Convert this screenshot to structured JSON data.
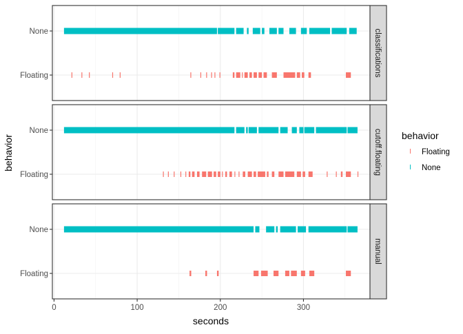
{
  "chart_data": {
    "type": "faceted-strip",
    "xlabel": "seconds",
    "ylabel": "behavior",
    "xlim": [
      -2,
      380
    ],
    "x_ticks": [
      0,
      100,
      200,
      300
    ],
    "y_categories": [
      "Floating",
      "None"
    ],
    "legend": {
      "title": "behavior",
      "placement": "right",
      "entries": [
        {
          "label": "Floating",
          "color": "#F8766D"
        },
        {
          "label": "None",
          "color": "#00BFC4"
        }
      ]
    },
    "colors": {
      "Floating": "#F8766D",
      "None": "#00BFC4"
    },
    "facets": [
      {
        "label": "classifications",
        "None": [
          [
            12,
            196
          ],
          [
            197,
            217
          ],
          [
            219,
            228
          ],
          [
            232,
            234
          ],
          [
            239,
            248
          ],
          [
            250,
            253
          ],
          [
            259,
            268
          ],
          [
            270,
            276
          ],
          [
            283,
            291
          ],
          [
            297,
            304
          ],
          [
            307,
            332
          ],
          [
            334,
            352
          ],
          [
            355,
            364
          ]
        ],
        "Floating": [
          [
            21,
            22
          ],
          [
            33,
            34
          ],
          [
            42,
            43
          ],
          [
            70,
            71
          ],
          [
            79,
            80
          ],
          [
            164,
            165
          ],
          [
            176,
            177
          ],
          [
            183,
            184
          ],
          [
            189,
            190
          ],
          [
            193,
            194
          ],
          [
            199,
            200
          ],
          [
            215,
            217
          ],
          [
            219,
            224
          ],
          [
            226,
            227
          ],
          [
            229,
            233
          ],
          [
            235,
            238
          ],
          [
            240,
            244
          ],
          [
            246,
            250
          ],
          [
            252,
            256
          ],
          [
            262,
            268
          ],
          [
            276,
            290
          ],
          [
            292,
            296
          ],
          [
            298,
            301
          ],
          [
            306,
            309
          ],
          [
            351,
            357
          ]
        ]
      },
      {
        "label": "cutoff.floating",
        "None": [
          [
            12,
            217
          ],
          [
            219,
            229
          ],
          [
            231,
            233
          ],
          [
            234,
            244
          ],
          [
            246,
            270
          ],
          [
            272,
            281
          ],
          [
            286,
            292
          ],
          [
            295,
            300
          ],
          [
            301,
            313
          ],
          [
            315,
            352
          ],
          [
            353,
            365
          ]
        ],
        "Floating": [
          [
            131,
            132
          ],
          [
            137,
            138
          ],
          [
            144,
            145
          ],
          [
            152,
            153
          ],
          [
            158,
            159
          ],
          [
            162,
            164
          ],
          [
            166,
            169
          ],
          [
            172,
            175
          ],
          [
            178,
            183
          ],
          [
            185,
            190
          ],
          [
            192,
            195
          ],
          [
            197,
            200
          ],
          [
            202,
            203
          ],
          [
            206,
            208
          ],
          [
            211,
            214
          ],
          [
            217,
            218
          ],
          [
            222,
            223
          ],
          [
            227,
            230
          ],
          [
            233,
            238
          ],
          [
            240,
            243
          ],
          [
            245,
            254
          ],
          [
            256,
            258
          ],
          [
            262,
            265
          ],
          [
            270,
            276
          ],
          [
            278,
            289
          ],
          [
            292,
            297
          ],
          [
            299,
            302
          ],
          [
            306,
            311
          ],
          [
            328,
            329
          ],
          [
            339,
            340
          ],
          [
            345,
            347
          ],
          [
            351,
            357
          ],
          [
            365,
            366
          ]
        ]
      },
      {
        "label": "manual",
        "None": [
          [
            12,
            240
          ],
          [
            242,
            247
          ],
          [
            255,
            265
          ],
          [
            267,
            269
          ],
          [
            272,
            291
          ],
          [
            293,
            303
          ],
          [
            306,
            352
          ],
          [
            353,
            365
          ]
        ],
        "Floating": [
          [
            163,
            165
          ],
          [
            182,
            184
          ],
          [
            196,
            198
          ],
          [
            240,
            246
          ],
          [
            249,
            257
          ],
          [
            264,
            270
          ],
          [
            278,
            283
          ],
          [
            285,
            292
          ],
          [
            297,
            302
          ],
          [
            307,
            313
          ],
          [
            351,
            357
          ]
        ]
      }
    ]
  }
}
